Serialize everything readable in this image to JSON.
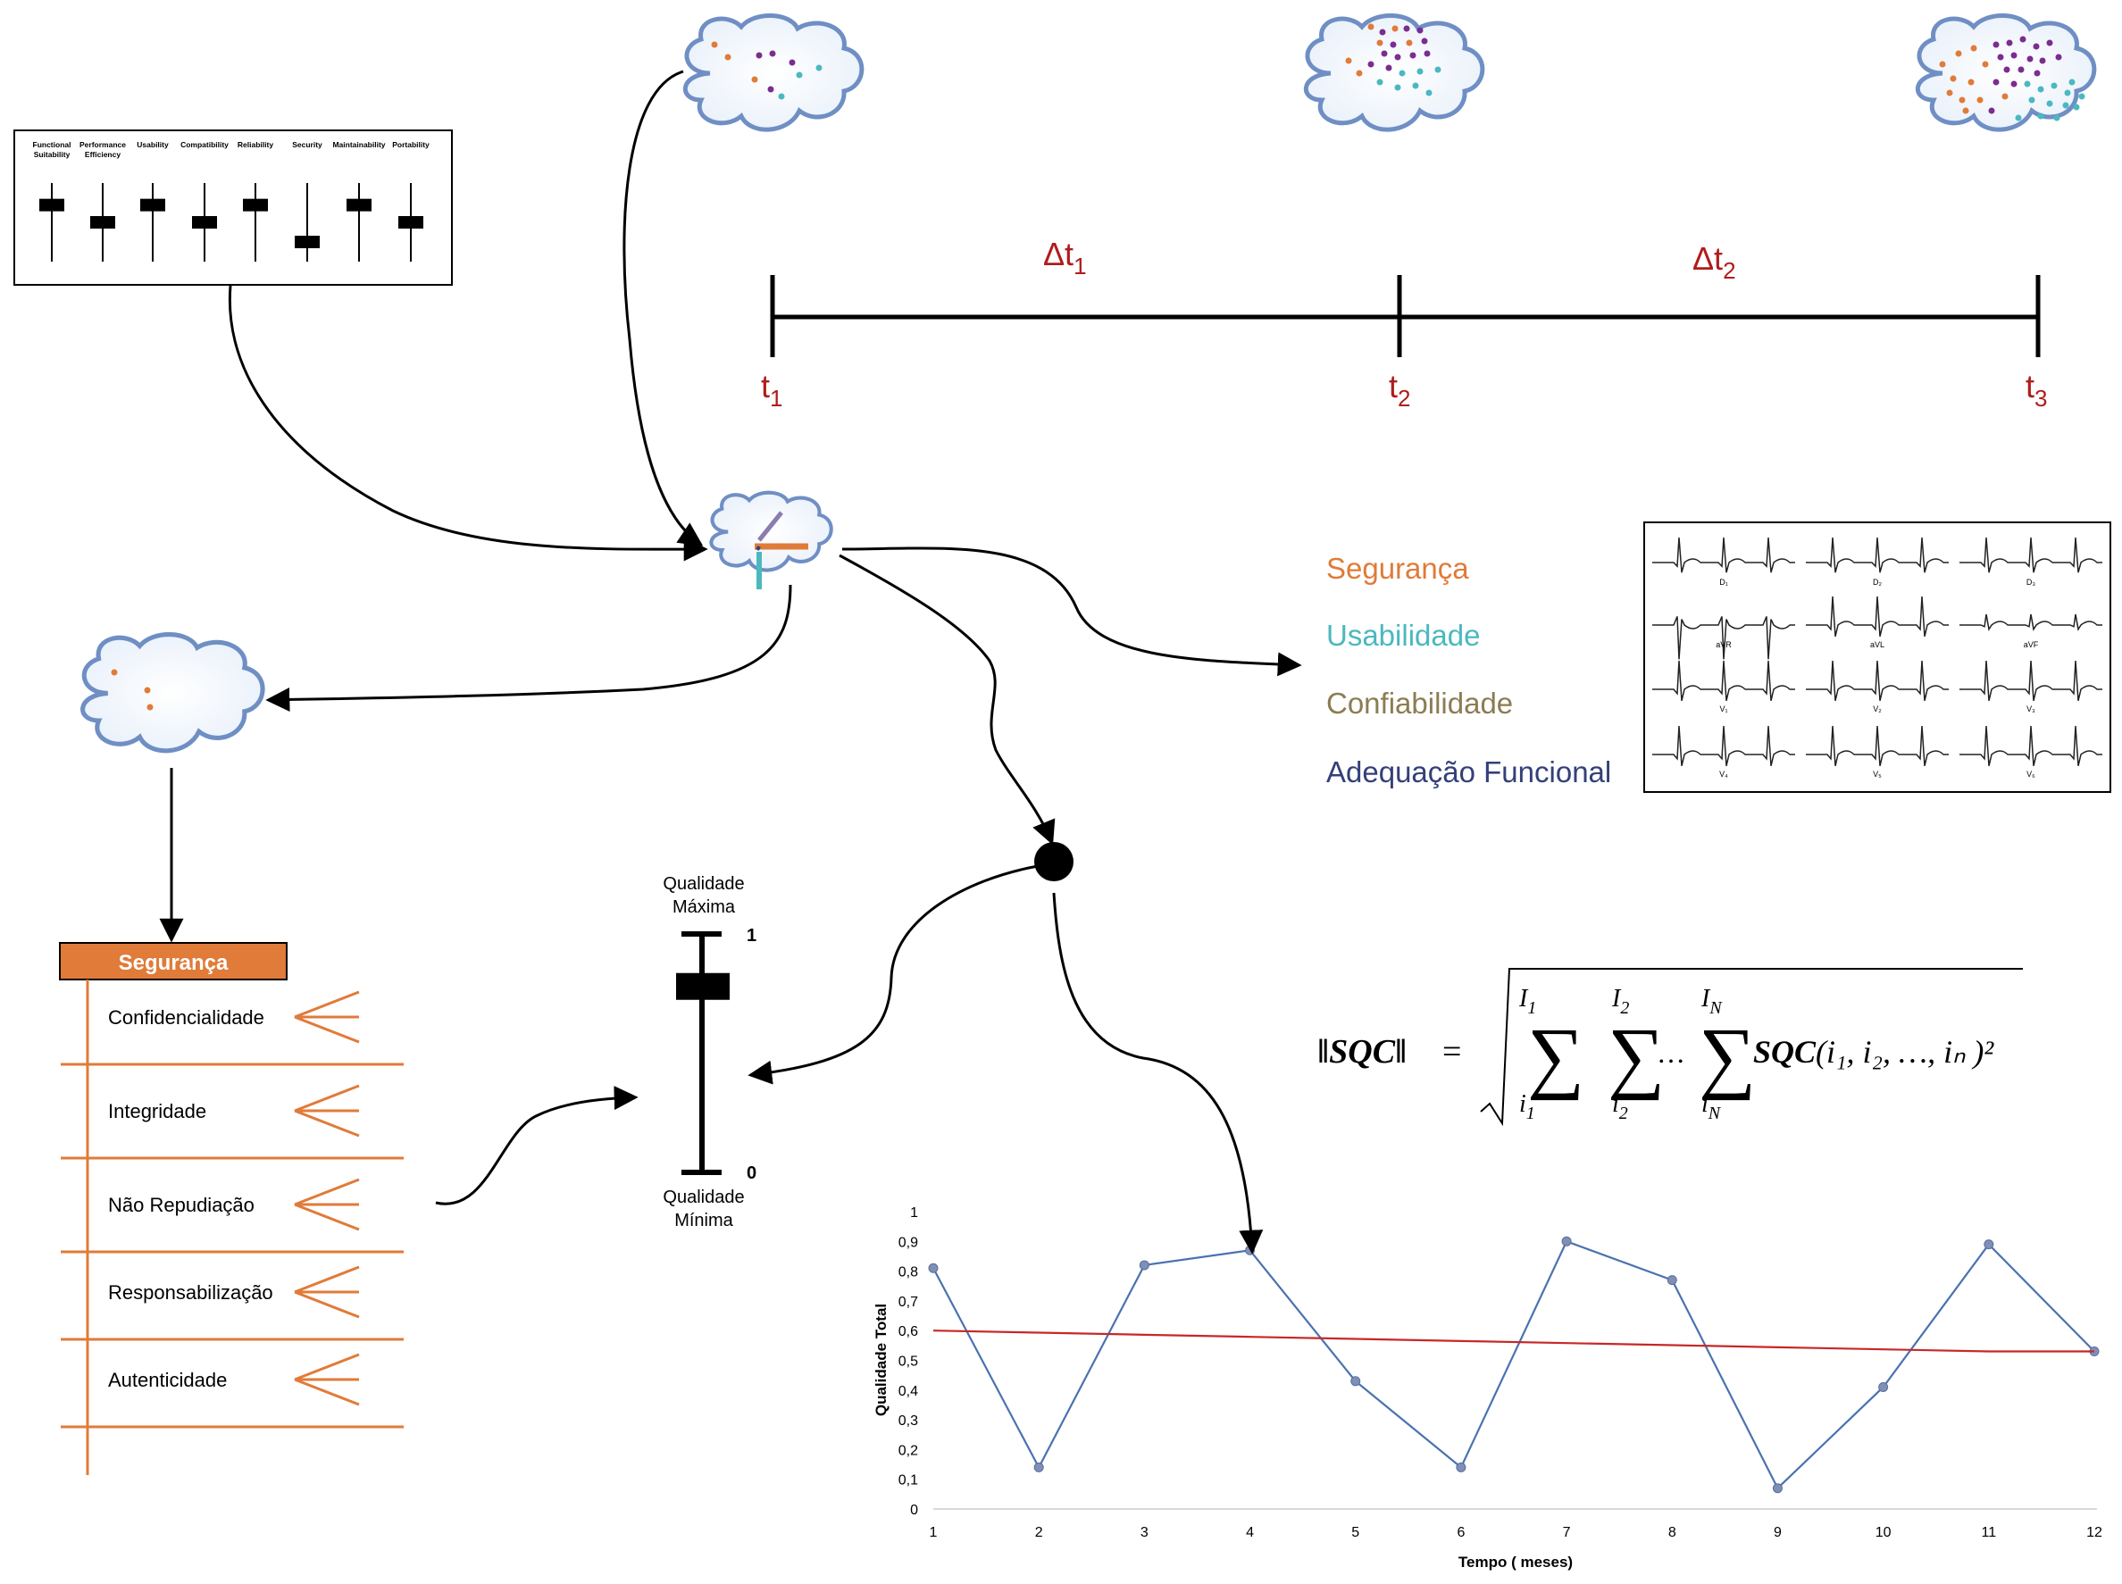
{
  "sliders_panel": {
    "labels": [
      "Functional\nSuitability",
      "Performance\nEfficiency",
      "Usability",
      "Compatibility",
      "Reliability",
      "Security",
      "Maintainability",
      "Portability"
    ],
    "levels": [
      0.72,
      0.5,
      0.72,
      0.5,
      0.72,
      0.25,
      0.72,
      0.5
    ]
  },
  "timeline": {
    "ticks": [
      {
        "base": "t",
        "sub": "1"
      },
      {
        "base": "t",
        "sub": "2"
      },
      {
        "base": "t",
        "sub": "3"
      }
    ],
    "intervals": [
      {
        "base": "Δt",
        "sub": "1"
      },
      {
        "base": "Δt",
        "sub": "2"
      }
    ],
    "color": "#b01c1c"
  },
  "characteristics_legend": [
    {
      "label": "Segurança",
      "color": "#e07b39"
    },
    {
      "label": "Usabilidade",
      "color": "#4bb8c0"
    },
    {
      "label": "Confiabilidade",
      "color": "#8c7c52"
    },
    {
      "label": "Adequação Funcional",
      "color": "#34407a"
    }
  ],
  "ecg_leads": [
    "D₁",
    "D₂",
    "D₃",
    "aVR",
    "aVL",
    "aVF",
    "V₁",
    "V₂",
    "V₃",
    "V₄",
    "V₅",
    "V₆"
  ],
  "security_tree": {
    "title": "Segurança",
    "color": "#e07b39",
    "items": [
      "Confidencialidade",
      "Integridade",
      "Não Repudiação",
      "Responsabilização",
      "Autenticidade"
    ]
  },
  "quality_scale": {
    "top_label": "Qualidade\nMáxima",
    "bottom_label": "Qualidade\nMínima",
    "max_value": "1",
    "min_value": "0",
    "level": 0.78
  },
  "formula": {
    "lhs": "‖SQC‖",
    "eq": "=",
    "sums": [
      {
        "upper": "I",
        "upper_sub": "1",
        "lower": "i",
        "lower_sub": "1"
      },
      {
        "upper": "I",
        "upper_sub": "2",
        "lower": "i",
        "lower_sub": "2"
      },
      {
        "upper": "I",
        "upper_sub": "N",
        "lower": "i",
        "lower_sub": "N"
      }
    ],
    "dots": "…",
    "term_bold": "SQC",
    "term_args": "(i₁, i₂, …, iₙ )²"
  },
  "chart_data": {
    "type": "line",
    "xlabel": "Tempo ( meses)",
    "ylabel": "Qualidade Total",
    "x": [
      1,
      2,
      3,
      4,
      5,
      6,
      7,
      8,
      9,
      10,
      11,
      12
    ],
    "x_tick_labels": [
      "1",
      "2",
      "3",
      "4",
      "5",
      "6",
      "7",
      "8",
      "9",
      "10",
      "11",
      "12"
    ],
    "y_tick_labels": [
      "0",
      "0,1",
      "0,2",
      "0,3",
      "0,4",
      "0,5",
      "0,6",
      "0,7",
      "0,8",
      "0,9",
      "1"
    ],
    "ylim": [
      0,
      1
    ],
    "grid": false,
    "series": [
      {
        "values": [
          0.81,
          0.14,
          0.82,
          0.87,
          0.43,
          0.14,
          0.9,
          0.77,
          0.07,
          0.41,
          0.89,
          0.53
        ],
        "color": "#4a72b0"
      },
      {
        "values": [
          0.6,
          0.593,
          0.586,
          0.579,
          0.572,
          0.565,
          0.558,
          0.551,
          0.544,
          0.537,
          0.53,
          0.53
        ],
        "color": "#c62828"
      }
    ]
  }
}
